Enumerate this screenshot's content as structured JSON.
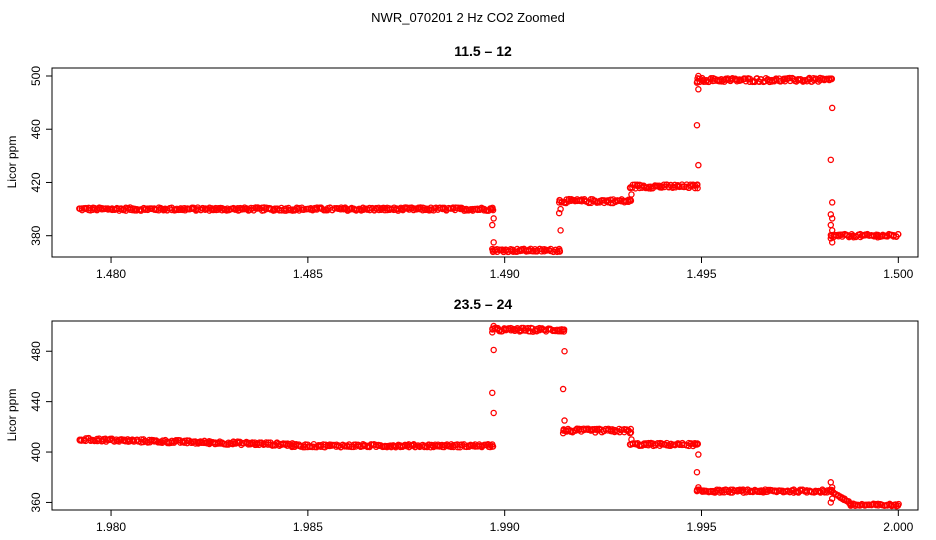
{
  "figure_title": "NWR_070201  2 Hz CO2 Zoomed",
  "marker_color": "#ff0000",
  "chart_data": [
    {
      "type": "scatter",
      "title": "11.5 – 12",
      "xlabel": "",
      "ylabel": "Licor ppm",
      "xlim": [
        1.4785,
        1.5005
      ],
      "ylim": [
        364,
        506
      ],
      "xticks": [
        1.48,
        1.485,
        1.49,
        1.495,
        1.5
      ],
      "xtick_labels": [
        "1.480",
        "1.485",
        "1.490",
        "1.495",
        "1.500"
      ],
      "yticks": [
        380,
        420,
        460,
        500
      ],
      "ytick_labels": [
        "380",
        "420",
        "460",
        "500"
      ],
      "segments": [
        {
          "x": [
            1.4792,
            1.4897
          ],
          "y": 400,
          "spread": 1.2
        },
        {
          "x": [
            1.4897,
            1.4914
          ],
          "y": 369,
          "spread": 1.2
        },
        {
          "x": [
            1.4914,
            1.4932
          ],
          "y": 406,
          "spread": 1.5
        },
        {
          "x": [
            1.4932,
            1.4949
          ],
          "y": 417,
          "spread": 1.5
        },
        {
          "x": [
            1.4949,
            1.4983
          ],
          "y": 497,
          "spread": 1.5
        },
        {
          "x": [
            1.4983,
            1.5
          ],
          "y": 380,
          "spread": 1.2
        }
      ],
      "transitions": [
        {
          "x": 1.4897,
          "y": [
            400,
            393,
            388,
            375,
            370
          ]
        },
        {
          "x": 1.4914,
          "y": [
            370,
            384,
            397,
            400,
            405
          ]
        },
        {
          "x": 1.4932,
          "y": [
            407,
            411,
            416
          ]
        },
        {
          "x": 1.4949,
          "y": [
            418,
            433,
            463,
            490,
            495,
            500
          ]
        },
        {
          "x": 1.4983,
          "y": [
            498,
            476,
            437,
            405,
            396,
            393,
            388,
            384,
            378,
            375
          ]
        }
      ]
    },
    {
      "type": "scatter",
      "title": "23.5 – 24",
      "xlabel": "",
      "ylabel": "Licor ppm",
      "xlim": [
        1.9785,
        2.0005
      ],
      "ylim": [
        354,
        504
      ],
      "xticks": [
        1.98,
        1.985,
        1.99,
        1.995,
        2.0
      ],
      "xtick_labels": [
        "1.980",
        "1.985",
        "1.990",
        "1.995",
        "2.000"
      ],
      "yticks": [
        360,
        400,
        440,
        480
      ],
      "ytick_labels": [
        "360",
        "400",
        "440",
        "480"
      ],
      "segments": [
        {
          "x": [
            1.9792,
            1.9846
          ],
          "y": [
            410,
            406
          ],
          "spread": 1.3
        },
        {
          "x": [
            1.9846,
            1.9897
          ],
          "y": 405,
          "spread": 1.2
        },
        {
          "x": [
            1.9897,
            1.9915
          ],
          "y": 497,
          "spread": 1.5
        },
        {
          "x": [
            1.9915,
            1.9932
          ],
          "y": 417,
          "spread": 1.5
        },
        {
          "x": [
            1.9932,
            1.9949
          ],
          "y": 406,
          "spread": 1.2
        },
        {
          "x": [
            1.9949,
            1.9983
          ],
          "y": 369,
          "spread": 1.2
        },
        {
          "x": [
            1.9983,
            1.9988
          ],
          "y": [
            369,
            359
          ],
          "spread": 1.0
        },
        {
          "x": [
            1.9988,
            2.0
          ],
          "y": 358,
          "spread": 1.0
        }
      ],
      "transitions": [
        {
          "x": 1.9897,
          "y": [
            406,
            431,
            447,
            481,
            495,
            500
          ]
        },
        {
          "x": 1.9915,
          "y": [
            497,
            480,
            450,
            425,
            415
          ]
        },
        {
          "x": 1.9932,
          "y": [
            415,
            410,
            406
          ]
        },
        {
          "x": 1.9949,
          "y": [
            406,
            398,
            384,
            372,
            369
          ]
        },
        {
          "x": 1.9983,
          "y": [
            369,
            372,
            376,
            363,
            360
          ]
        }
      ]
    }
  ]
}
